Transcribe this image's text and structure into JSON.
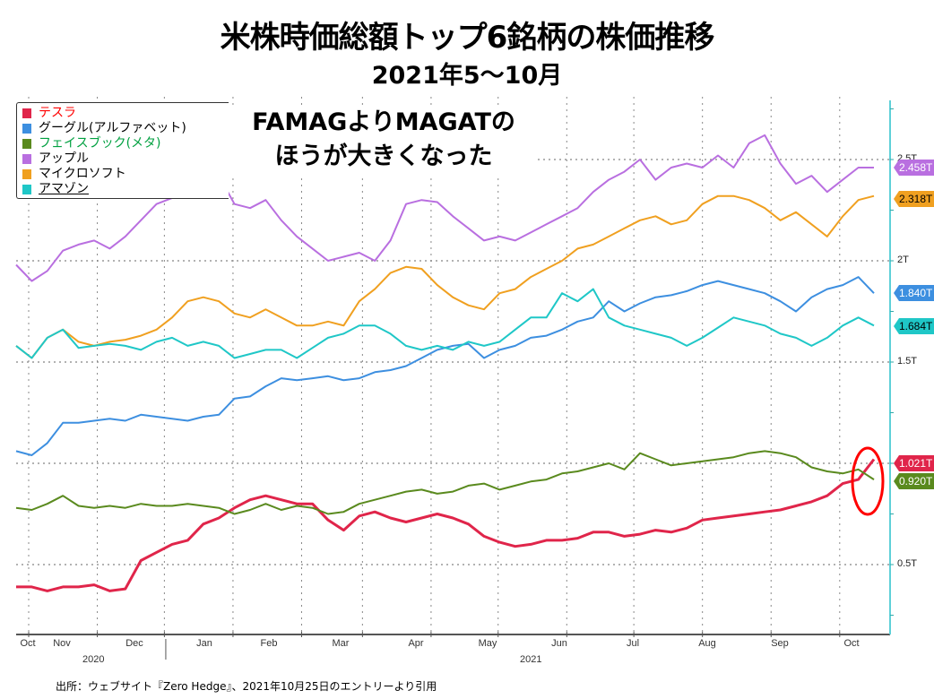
{
  "title": "米株時価総額トップ6銘柄の株価推移",
  "subtitle": "2021年5〜10月",
  "annotation": {
    "line1": "FAMAGよりMAGATの",
    "line2": "ほうが大きくなった"
  },
  "source": "出所：ウェブサイト『Zero Hedge』、2021年10月25日のエントリーより引用",
  "chart_data": {
    "type": "line",
    "title": "米株時価総額トップ6銘柄の株価推移",
    "subtitle": "2021年5〜10月",
    "xlabel": "",
    "ylabel": "",
    "x_tick_labels": [
      "Oct",
      "Nov",
      "Dec",
      "Jan",
      "Feb",
      "Mar",
      "Apr",
      "May",
      "Jun",
      "Jul",
      "Aug",
      "Sep",
      "Oct"
    ],
    "x_year_labels": [
      "2020",
      "2021"
    ],
    "y_tick_labels": [
      "0.5T",
      "1T",
      "1.5T",
      "2T",
      "2.5T"
    ],
    "y_ticks": [
      0.5,
      1.0,
      1.5,
      2.0,
      2.5
    ],
    "ylim": [
      0.25,
      2.85
    ],
    "x_unit": "week index from start of Oct 2020 (0 = early Oct 2020, 55 = late Oct 2021)",
    "month_start_week": [
      0,
      4.4,
      8.7,
      13.1,
      17.5,
      21.4,
      25.8,
      30.1,
      34.5,
      38.8,
      43.2,
      47.6,
      52
    ],
    "grid": true,
    "legend_position": "top-left",
    "series": [
      {
        "name": "テスラ",
        "color": "#e0254a",
        "last_value_label": "1.021T",
        "values": [
          0.39,
          0.39,
          0.37,
          0.39,
          0.39,
          0.4,
          0.37,
          0.38,
          0.52,
          0.56,
          0.6,
          0.62,
          0.7,
          0.73,
          0.78,
          0.82,
          0.84,
          0.82,
          0.8,
          0.8,
          0.72,
          0.67,
          0.74,
          0.76,
          0.73,
          0.71,
          0.73,
          0.75,
          0.73,
          0.7,
          0.64,
          0.61,
          0.59,
          0.6,
          0.62,
          0.62,
          0.63,
          0.66,
          0.66,
          0.64,
          0.65,
          0.67,
          0.66,
          0.68,
          0.72,
          0.73,
          0.74,
          0.75,
          0.76,
          0.77,
          0.79,
          0.81,
          0.84,
          0.9,
          0.92,
          1.02
        ]
      },
      {
        "name": "グーグル(アルファベット)",
        "color": "#3d8fe0",
        "last_value_label": "1.840T",
        "values": [
          1.06,
          1.04,
          1.1,
          1.2,
          1.2,
          1.21,
          1.22,
          1.21,
          1.24,
          1.23,
          1.22,
          1.21,
          1.23,
          1.24,
          1.32,
          1.33,
          1.38,
          1.42,
          1.41,
          1.42,
          1.43,
          1.41,
          1.42,
          1.45,
          1.46,
          1.48,
          1.52,
          1.56,
          1.58,
          1.59,
          1.52,
          1.56,
          1.58,
          1.62,
          1.63,
          1.66,
          1.7,
          1.72,
          1.8,
          1.75,
          1.79,
          1.82,
          1.83,
          1.85,
          1.88,
          1.9,
          1.88,
          1.86,
          1.84,
          1.8,
          1.75,
          1.82,
          1.86,
          1.88,
          1.92,
          1.84
        ]
      },
      {
        "name": "フェイスブック(メタ)",
        "color": "#5a8a1e",
        "last_value_label": "0.920T",
        "values": [
          0.78,
          0.77,
          0.8,
          0.84,
          0.79,
          0.78,
          0.79,
          0.78,
          0.8,
          0.79,
          0.79,
          0.8,
          0.79,
          0.78,
          0.75,
          0.77,
          0.8,
          0.77,
          0.79,
          0.78,
          0.75,
          0.76,
          0.8,
          0.82,
          0.84,
          0.86,
          0.87,
          0.85,
          0.86,
          0.89,
          0.9,
          0.87,
          0.89,
          0.91,
          0.92,
          0.95,
          0.96,
          0.98,
          1.0,
          0.97,
          1.05,
          1.02,
          0.99,
          1.0,
          1.01,
          1.02,
          1.03,
          1.05,
          1.06,
          1.05,
          1.03,
          0.98,
          0.96,
          0.95,
          0.97,
          0.92
        ]
      },
      {
        "name": "アップル",
        "color": "#b96fe0",
        "last_value_label": "2.458T",
        "values": [
          1.98,
          1.9,
          1.95,
          2.05,
          2.08,
          2.1,
          2.06,
          2.12,
          2.2,
          2.28,
          2.31,
          2.38,
          2.34,
          2.42,
          2.28,
          2.26,
          2.3,
          2.2,
          2.12,
          2.06,
          2.0,
          2.02,
          2.04,
          2.0,
          2.1,
          2.28,
          2.3,
          2.29,
          2.22,
          2.16,
          2.1,
          2.12,
          2.1,
          2.14,
          2.18,
          2.22,
          2.26,
          2.34,
          2.4,
          2.44,
          2.5,
          2.4,
          2.46,
          2.48,
          2.46,
          2.52,
          2.46,
          2.58,
          2.62,
          2.48,
          2.38,
          2.42,
          2.34,
          2.4,
          2.46,
          2.46
        ]
      },
      {
        "name": "マイクロソフト",
        "color": "#f0a020",
        "last_value_label": "2.318T",
        "values": [
          1.58,
          1.52,
          1.62,
          1.66,
          1.6,
          1.58,
          1.6,
          1.61,
          1.63,
          1.66,
          1.72,
          1.8,
          1.82,
          1.8,
          1.74,
          1.72,
          1.76,
          1.72,
          1.68,
          1.68,
          1.7,
          1.68,
          1.8,
          1.86,
          1.94,
          1.97,
          1.96,
          1.88,
          1.82,
          1.78,
          1.76,
          1.84,
          1.86,
          1.92,
          1.96,
          2.0,
          2.06,
          2.08,
          2.12,
          2.16,
          2.2,
          2.22,
          2.18,
          2.2,
          2.28,
          2.32,
          2.32,
          2.3,
          2.26,
          2.2,
          2.24,
          2.18,
          2.12,
          2.22,
          2.3,
          2.32
        ]
      },
      {
        "name": "アマゾン",
        "color": "#1fc7c7",
        "last_value_label": "1.684T",
        "values": [
          1.58,
          1.52,
          1.62,
          1.66,
          1.57,
          1.58,
          1.59,
          1.58,
          1.56,
          1.6,
          1.62,
          1.58,
          1.6,
          1.58,
          1.52,
          1.54,
          1.56,
          1.56,
          1.52,
          1.57,
          1.62,
          1.64,
          1.68,
          1.68,
          1.64,
          1.58,
          1.56,
          1.58,
          1.56,
          1.6,
          1.58,
          1.6,
          1.66,
          1.72,
          1.72,
          1.84,
          1.8,
          1.86,
          1.72,
          1.68,
          1.66,
          1.64,
          1.62,
          1.58,
          1.62,
          1.67,
          1.72,
          1.7,
          1.68,
          1.64,
          1.62,
          1.58,
          1.62,
          1.68,
          1.72,
          1.68
        ]
      }
    ]
  },
  "legend": [
    {
      "label": "テスラ",
      "swatch": "#e0254a",
      "text_color": "#ff0000"
    },
    {
      "label": "グーグル(アルファベット)",
      "swatch": "#3d8fe0",
      "text_color": "#000000"
    },
    {
      "label": "フェイスブック(メタ)",
      "swatch": "#5a8a1e",
      "text_color": "#00a040"
    },
    {
      "label": "アップル",
      "swatch": "#b96fe0",
      "text_color": "#000000"
    },
    {
      "label": "マイクロソフト",
      "swatch": "#f0a020",
      "text_color": "#000000"
    },
    {
      "label": "アマゾン",
      "swatch": "#1fc7c7",
      "text_color": "#000000"
    }
  ],
  "highlight_circle_color": "#ff0000"
}
